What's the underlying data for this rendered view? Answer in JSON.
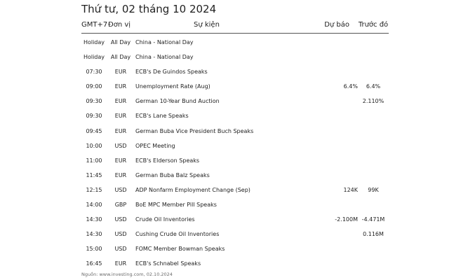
{
  "title": "Thứ tư, 02 tháng 10 2024",
  "headers": {
    "time": "GMT+7",
    "currency": "Đơn vị",
    "event": "Sự kiện",
    "forecast": "Dự báo",
    "previous": "Trước đó"
  },
  "rows": [
    {
      "time": "Holiday",
      "currency": "All Day",
      "event": "China - National Day",
      "forecast": "",
      "previous": ""
    },
    {
      "time": "Holiday",
      "currency": "All Day",
      "event": "China - National Day",
      "forecast": "",
      "previous": ""
    },
    {
      "time": "07:30",
      "currency": "EUR",
      "event": "ECB's De Guindos Speaks",
      "forecast": "",
      "previous": ""
    },
    {
      "time": "09:00",
      "currency": "EUR",
      "event": "Unemployment Rate (Aug)",
      "forecast": "6.4%",
      "previous": "6.4%"
    },
    {
      "time": "09:30",
      "currency": "EUR",
      "event": "German 10-Year Bund Auction",
      "forecast": "",
      "previous": "2.110%"
    },
    {
      "time": "09:30",
      "currency": "EUR",
      "event": "ECB's Lane Speaks",
      "forecast": "",
      "previous": ""
    },
    {
      "time": "09:45",
      "currency": "EUR",
      "event": "German Buba Vice President Buch Speaks",
      "forecast": "",
      "previous": ""
    },
    {
      "time": "10:00",
      "currency": "USD",
      "event": "OPEC Meeting",
      "forecast": "",
      "previous": ""
    },
    {
      "time": "11:00",
      "currency": "EUR",
      "event": "ECB's Elderson Speaks",
      "forecast": "",
      "previous": ""
    },
    {
      "time": "11:45",
      "currency": "EUR",
      "event": "German Buba Balz Speaks",
      "forecast": "",
      "previous": ""
    },
    {
      "time": "12:15",
      "currency": "USD",
      "event": "ADP Nonfarm Employment Change (Sep)",
      "forecast": "124K",
      "previous": "99K"
    },
    {
      "time": "14:00",
      "currency": "GBP",
      "event": "BoE MPC Member Pill Speaks",
      "forecast": "",
      "previous": ""
    },
    {
      "time": "14:30",
      "currency": "USD",
      "event": "Crude Oil Inventories",
      "forecast": "-2.100M",
      "previous": "-4.471M"
    },
    {
      "time": "14:30",
      "currency": "USD",
      "event": "Cushing Crude Oil Inventories",
      "forecast": "",
      "previous": "0.116M"
    },
    {
      "time": "15:00",
      "currency": "USD",
      "event": "FOMC Member Bowman Speaks",
      "forecast": "",
      "previous": ""
    },
    {
      "time": "16:45",
      "currency": "EUR",
      "event": "ECB's Schnabel Speaks",
      "forecast": "",
      "previous": ""
    }
  ],
  "source": "Nguồn: www.investing.com, 02.10.2024"
}
